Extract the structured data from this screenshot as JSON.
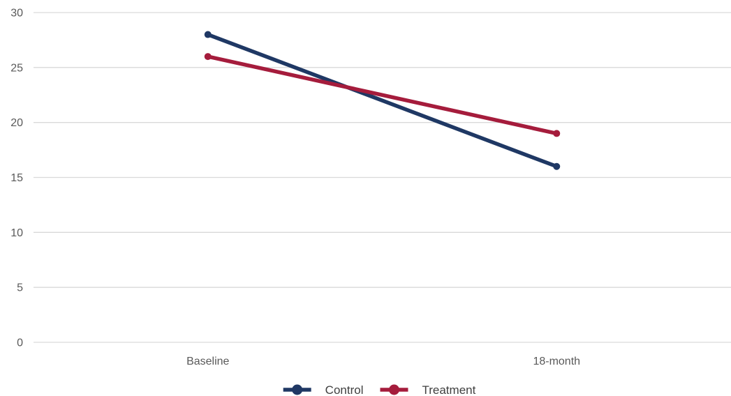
{
  "chart_data": {
    "type": "line",
    "title": "",
    "xlabel": "",
    "ylabel": "",
    "categories": [
      "Baseline",
      "18-month"
    ],
    "ylim": [
      0,
      30
    ],
    "yticks": [
      0,
      5,
      10,
      15,
      20,
      25,
      30
    ],
    "grid": true,
    "legend_position": "bottom",
    "series": [
      {
        "name": "Control",
        "values": [
          28,
          16
        ],
        "color": "#1f3864"
      },
      {
        "name": "Treatment",
        "values": [
          26,
          19
        ],
        "color": "#a51c3c"
      }
    ]
  }
}
